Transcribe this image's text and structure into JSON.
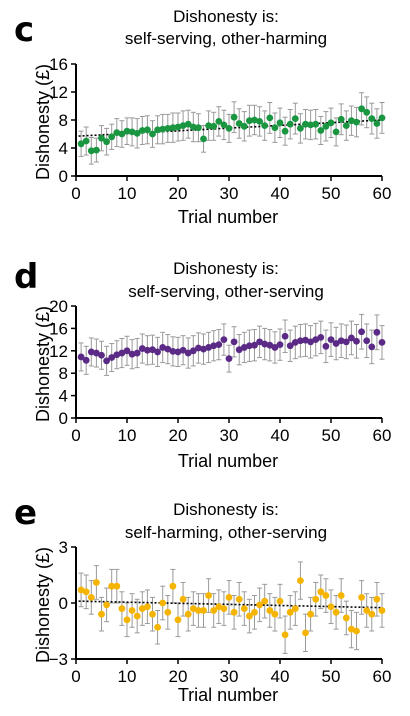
{
  "chart_data": [
    {
      "panel": "c",
      "type": "scatter",
      "title": [
        "Dishonesty is:",
        "self-serving, other-harming"
      ],
      "xlabel": "Trial number",
      "ylabel": "Dishonesty (£)",
      "xlim": [
        0,
        60
      ],
      "ylim": [
        0,
        16
      ],
      "xticks": [
        0,
        10,
        20,
        30,
        40,
        50,
        60
      ],
      "yticks": [
        0,
        4,
        8,
        12,
        16
      ],
      "color": "#1a9641",
      "trend": [
        5.7,
        8.0
      ],
      "x": [
        1,
        2,
        3,
        4,
        5,
        6,
        7,
        8,
        9,
        10,
        11,
        12,
        13,
        14,
        15,
        16,
        17,
        18,
        19,
        20,
        21,
        22,
        23,
        24,
        25,
        26,
        27,
        28,
        29,
        30,
        31,
        32,
        33,
        34,
        35,
        36,
        37,
        38,
        39,
        40,
        41,
        42,
        43,
        44,
        45,
        46,
        47,
        48,
        49,
        50,
        51,
        52,
        53,
        54,
        55,
        56,
        57,
        58,
        59,
        60
      ],
      "y": [
        4.6,
        5.0,
        3.6,
        3.7,
        5.4,
        4.9,
        5.6,
        6.2,
        6.0,
        6.4,
        6.3,
        6.1,
        6.5,
        6.6,
        6.0,
        6.6,
        6.7,
        6.8,
        6.9,
        7.0,
        7.2,
        7.4,
        7.0,
        6.9,
        5.3,
        7.2,
        7.1,
        7.8,
        7.3,
        6.8,
        8.4,
        7.5,
        7.1,
        7.9,
        8.0,
        7.8,
        7.2,
        8.3,
        6.9,
        7.6,
        6.4,
        7.4,
        8.2,
        6.8,
        7.4,
        7.3,
        7.4,
        6.5,
        7.1,
        7.6,
        6.3,
        8.1,
        7.2,
        7.9,
        7.7,
        9.6,
        9.1,
        8.2,
        7.5,
        8.3
      ],
      "err": [
        1.8,
        2.0,
        1.9,
        1.7,
        1.8,
        1.9,
        1.8,
        2.0,
        1.9,
        1.9,
        2.0,
        2.1,
        2.0,
        2.0,
        1.9,
        2.0,
        2.1,
        2.0,
        2.1,
        2.0,
        2.1,
        2.0,
        2.1,
        2.0,
        1.9,
        2.1,
        2.0,
        2.1,
        2.1,
        2.0,
        2.2,
        2.1,
        2.1,
        2.2,
        2.1,
        2.1,
        2.1,
        2.2,
        2.1,
        2.1,
        2.0,
        2.1,
        2.2,
        2.1,
        2.1,
        2.1,
        2.1,
        2.0,
        2.1,
        2.1,
        2.0,
        2.2,
        2.1,
        2.1,
        2.1,
        2.3,
        2.2,
        2.2,
        2.1,
        2.2
      ]
    },
    {
      "panel": "d",
      "type": "scatter",
      "title": [
        "Dishonesty is:",
        "self-serving, other-serving"
      ],
      "xlabel": "Trial number",
      "ylabel": "Dishonesty (£)",
      "xlim": [
        0,
        60
      ],
      "ylim": [
        0,
        20
      ],
      "xticks": [
        0,
        10,
        20,
        30,
        40,
        50,
        60
      ],
      "yticks": [
        0,
        4,
        8,
        12,
        16,
        20
      ],
      "color": "#5b2a86",
      "trend": null,
      "x": [
        1,
        2,
        3,
        4,
        5,
        6,
        7,
        8,
        9,
        10,
        11,
        12,
        13,
        14,
        15,
        16,
        17,
        18,
        19,
        20,
        21,
        22,
        23,
        24,
        25,
        26,
        27,
        28,
        29,
        30,
        31,
        32,
        33,
        34,
        35,
        36,
        37,
        38,
        39,
        40,
        41,
        42,
        43,
        44,
        45,
        46,
        47,
        48,
        49,
        50,
        51,
        52,
        53,
        54,
        55,
        56,
        57,
        58,
        59,
        60
      ],
      "y": [
        10.9,
        10.3,
        11.8,
        11.6,
        11.2,
        10.2,
        10.8,
        11.3,
        11.6,
        12.0,
        11.4,
        11.6,
        12.4,
        12.1,
        12.2,
        11.8,
        12.6,
        12.3,
        11.9,
        11.8,
        12.1,
        11.6,
        12.0,
        12.5,
        12.3,
        12.6,
        12.9,
        13.1,
        14.0,
        10.6,
        13.6,
        12.2,
        12.6,
        12.9,
        13.0,
        13.6,
        13.2,
        13.0,
        12.6,
        13.1,
        14.6,
        12.9,
        13.5,
        13.8,
        13.9,
        13.6,
        14.0,
        14.4,
        12.8,
        14.0,
        13.3,
        13.8,
        13.6,
        14.3,
        13.7,
        15.4,
        13.8,
        12.7,
        15.3,
        13.5
      ],
      "err": [
        2.5,
        2.5,
        2.5,
        2.5,
        2.5,
        2.6,
        2.5,
        2.5,
        2.6,
        2.6,
        2.6,
        2.6,
        2.6,
        2.6,
        2.6,
        2.6,
        2.7,
        2.6,
        2.6,
        2.6,
        2.6,
        2.7,
        2.7,
        2.7,
        2.7,
        2.7,
        2.7,
        2.7,
        2.8,
        2.4,
        2.7,
        2.7,
        2.7,
        2.8,
        2.8,
        2.8,
        2.8,
        2.8,
        2.8,
        2.8,
        2.9,
        2.8,
        2.9,
        2.9,
        2.9,
        2.9,
        2.9,
        2.9,
        2.9,
        3.0,
        2.9,
        3.0,
        3.0,
        3.0,
        3.0,
        3.1,
        3.0,
        3.0,
        3.1,
        3.0
      ]
    },
    {
      "panel": "e",
      "type": "scatter",
      "title": [
        "Dishonesty is:",
        "self-harming, other-serving"
      ],
      "xlabel": "Trial number",
      "ylabel": "Dishonesty (£)",
      "xlim": [
        0,
        60
      ],
      "ylim": [
        -3,
        3
      ],
      "xticks": [
        0,
        10,
        20,
        30,
        40,
        50,
        60
      ],
      "yticks": [
        -3,
        0,
        3
      ],
      "color": "#f5b400",
      "trend": [
        0.1,
        -0.25
      ],
      "x": [
        1,
        2,
        3,
        4,
        5,
        6,
        7,
        8,
        9,
        10,
        11,
        12,
        13,
        14,
        15,
        16,
        17,
        18,
        19,
        20,
        21,
        22,
        23,
        24,
        25,
        26,
        27,
        28,
        29,
        30,
        31,
        32,
        33,
        34,
        35,
        36,
        37,
        38,
        39,
        40,
        41,
        42,
        43,
        44,
        45,
        46,
        47,
        48,
        49,
        50,
        51,
        52,
        53,
        54,
        55,
        56,
        57,
        58,
        59,
        60
      ],
      "y": [
        0.7,
        0.6,
        0.3,
        1.1,
        -0.6,
        -0.1,
        0.9,
        0.9,
        -0.3,
        -0.9,
        -0.4,
        -0.7,
        -0.3,
        -0.2,
        -0.6,
        -1.3,
        0.0,
        -0.5,
        0.9,
        -0.9,
        0.2,
        -0.6,
        -0.3,
        -0.4,
        -0.4,
        0.4,
        -0.4,
        -0.2,
        -0.3,
        0.3,
        -0.5,
        0.2,
        -0.3,
        -0.7,
        -0.5,
        -0.1,
        0.1,
        -0.4,
        -0.6,
        0.1,
        -1.7,
        -0.5,
        -0.3,
        1.2,
        -1.6,
        -0.6,
        0.2,
        0.6,
        0.4,
        -0.2,
        -0.5,
        0.4,
        -0.8,
        -1.4,
        -1.5,
        0.3,
        -0.4,
        -0.6,
        0.2,
        -0.4
      ],
      "err": [
        0.9,
        0.9,
        0.9,
        0.9,
        0.9,
        0.9,
        0.9,
        0.9,
        0.9,
        0.9,
        0.9,
        0.9,
        0.9,
        0.9,
        0.9,
        0.9,
        0.9,
        0.9,
        0.9,
        0.9,
        0.9,
        0.9,
        0.9,
        0.9,
        0.9,
        0.9,
        0.9,
        0.9,
        0.9,
        0.9,
        0.9,
        0.9,
        0.9,
        0.9,
        0.9,
        0.9,
        0.9,
        0.9,
        0.9,
        0.9,
        1.0,
        0.9,
        0.9,
        1.0,
        1.0,
        0.9,
        0.9,
        0.9,
        0.9,
        0.9,
        0.9,
        0.9,
        0.9,
        1.0,
        1.0,
        0.9,
        0.9,
        0.9,
        0.9,
        0.9
      ]
    }
  ]
}
